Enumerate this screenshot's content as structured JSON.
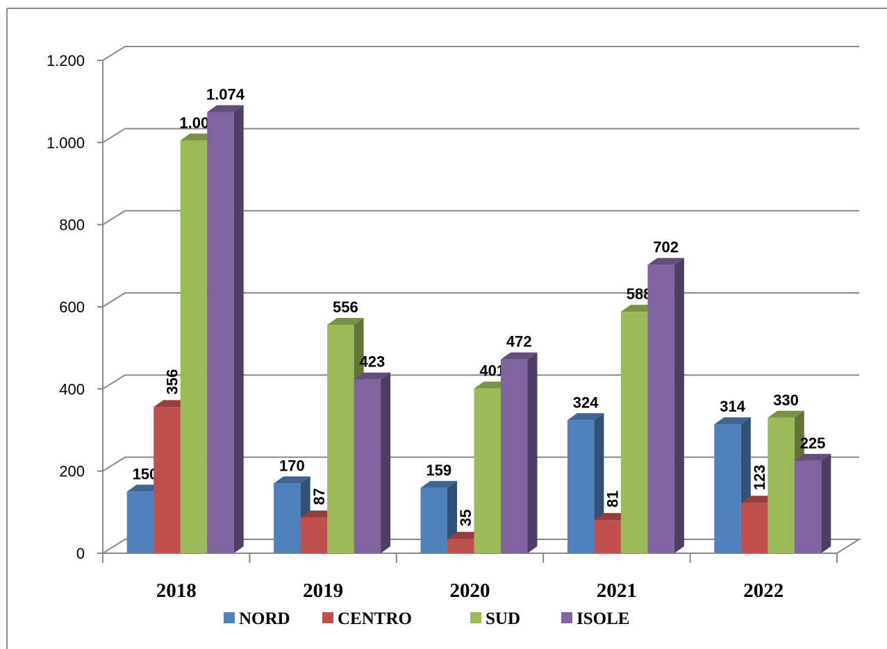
{
  "chart_data": {
    "type": "bar3d",
    "categories": [
      "2018",
      "2019",
      "2020",
      "2021",
      "2022"
    ],
    "series": [
      {
        "name": "NORD",
        "color": "#4f81bd",
        "values": [
          150,
          170,
          159,
          324,
          314
        ]
      },
      {
        "name": "CENTRO",
        "color": "#c0504d",
        "values": [
          356,
          87,
          35,
          81,
          123
        ]
      },
      {
        "name": "SUD",
        "color": "#9bbb59",
        "values": [
          1005,
          556,
          401,
          588,
          330
        ],
        "value_labels": [
          "1.005",
          "556",
          "401",
          "588",
          "330"
        ]
      },
      {
        "name": "ISOLE",
        "color": "#8064a2",
        "values": [
          1074,
          423,
          472,
          702,
          225
        ],
        "value_labels": [
          "1.074",
          "423",
          "472",
          "702",
          "225"
        ]
      }
    ],
    "ylim": [
      0,
      1200
    ],
    "yticks": [
      0,
      200,
      400,
      600,
      800,
      {
        "value": 1000,
        "label": "1.000"
      },
      {
        "value": 1200,
        "label": "1.200"
      }
    ],
    "grid": true,
    "legend": "bottom"
  }
}
